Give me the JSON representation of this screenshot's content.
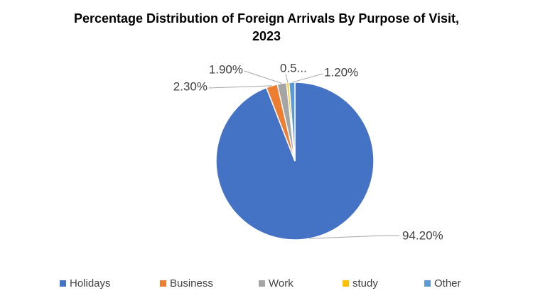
{
  "chart_data": {
    "type": "pie",
    "title_line1": "Percentage Distribution of Foreign Arrivals By Purpose of Visit,",
    "title_line2": "2023",
    "categories": [
      "Holidays",
      "Business",
      "Work",
      "study",
      "Other"
    ],
    "values": [
      94.2,
      2.3,
      1.9,
      0.5,
      1.2
    ],
    "data_labels": [
      "94.20%",
      "2.30%",
      "1.90%",
      "0.5...",
      "1.20%"
    ],
    "colors": [
      "#4472C4",
      "#ED7D31",
      "#A5A5A5",
      "#FFC000",
      "#5B9BD5"
    ],
    "legend_position": "bottom"
  }
}
